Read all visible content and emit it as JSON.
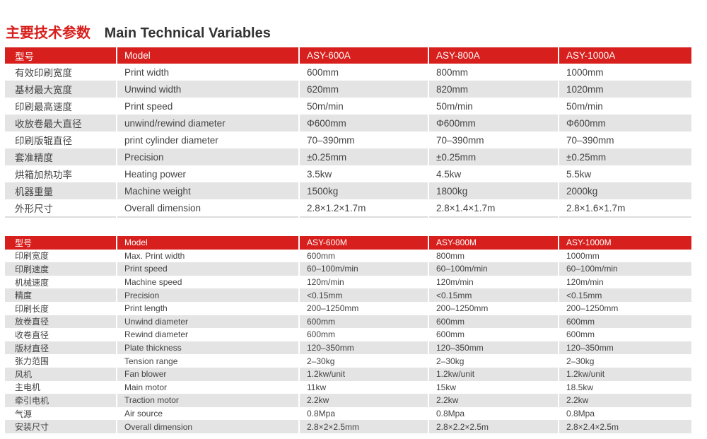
{
  "title": {
    "zh": "主要技术参数",
    "en": "Main Technical Variables"
  },
  "colors": {
    "accent": "#d7201d",
    "alt_row": "#e4e4e4"
  },
  "table1": {
    "header": [
      "型号",
      "Model",
      "ASY-600A",
      "ASY-800A",
      "ASY-1000A"
    ],
    "rows": [
      [
        "有效印刷宽度",
        "Print width",
        "600mm",
        "800mm",
        "1000mm"
      ],
      [
        "基材最大宽度",
        "Unwind width",
        "620mm",
        "820mm",
        "1020mm"
      ],
      [
        "印刷最高速度",
        "Print speed",
        "50m/min",
        "50m/min",
        "50m/min"
      ],
      [
        "收放卷最大直径",
        "unwind/rewind diameter",
        "Φ600mm",
        "Φ600mm",
        "Φ600mm"
      ],
      [
        "印刷版辊直径",
        "print cylinder diameter",
        "70–390mm",
        "70–390mm",
        "70–390mm"
      ],
      [
        "套准精度",
        "Precision",
        "±0.25mm",
        "±0.25mm",
        "±0.25mm"
      ],
      [
        "烘箱加热功率",
        "Heating power",
        "3.5kw",
        "4.5kw",
        "5.5kw"
      ],
      [
        "机器重量",
        "Machine weight",
        "1500kg",
        "1800kg",
        "2000kg"
      ],
      [
        "外形尺寸",
        "Overall dimension",
        "2.8×1.2×1.7m",
        "2.8×1.4×1.7m",
        "2.8×1.6×1.7m"
      ]
    ]
  },
  "table2": {
    "header": [
      "型号",
      "Model",
      "ASY-600M",
      "ASY-800M",
      "ASY-1000M"
    ],
    "rows": [
      [
        "印刷宽度",
        "Max. Print width",
        "600mm",
        "800mm",
        "1000mm"
      ],
      [
        "印刷速度",
        "Print speed",
        "60–100m/min",
        "60–100m/min",
        "60–100m/min"
      ],
      [
        "机械速度",
        "Machine speed",
        "120m/min",
        "120m/min",
        "120m/min"
      ],
      [
        "精度",
        "Precision",
        "<0.15mm",
        "<0.15mm",
        "<0.15mm"
      ],
      [
        "印刷长度",
        "Print length",
        "200–1250mm",
        "200–1250mm",
        "200–1250mm"
      ],
      [
        "放卷直径",
        "Unwind diameter",
        "600mm",
        "600mm",
        "600mm"
      ],
      [
        "收卷直径",
        "Rewind diameter",
        "600mm",
        "600mm",
        "600mm"
      ],
      [
        "版材直径",
        "Plate thickness",
        "120–350mm",
        "120–350mm",
        "120–350mm"
      ],
      [
        "张力范围",
        "Tension range",
        "2–30kg",
        "2–30kg",
        "2–30kg"
      ],
      [
        "风机",
        "Fan blower",
        "1.2kw/unit",
        "1.2kw/unit",
        "1.2kw/unit"
      ],
      [
        "主电机",
        "Main motor",
        "11kw",
        "15kw",
        "18.5kw"
      ],
      [
        "牵引电机",
        "Traction motor",
        "2.2kw",
        "2.2kw",
        "2.2kw"
      ],
      [
        "气源",
        "Air source",
        "0.8Mpa",
        "0.8Mpa",
        "0.8Mpa"
      ],
      [
        "安装尺寸",
        "Overall dimension",
        "2.8×2×2.5mm",
        "2.8×2.2×2.5m",
        "2.8×2.4×2.5m"
      ]
    ]
  }
}
